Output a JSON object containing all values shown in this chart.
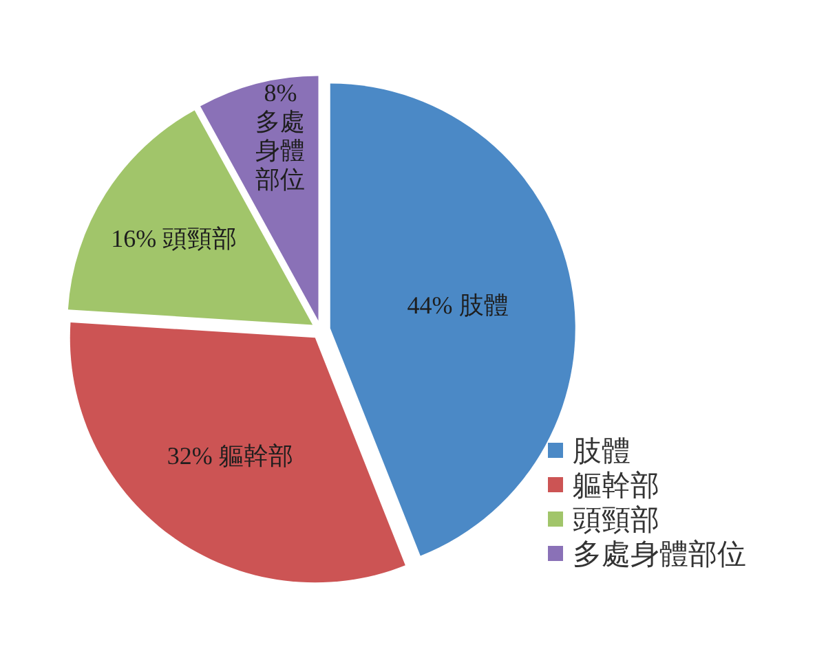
{
  "chart_data": {
    "type": "pie",
    "categories": [
      "肢體",
      "軀幹部",
      "頭頸部",
      "多處身體部位"
    ],
    "values": [
      44,
      32,
      16,
      8
    ],
    "colors": [
      "#4b89c6",
      "#cc5454",
      "#a1c56a",
      "#8a71b7"
    ],
    "value_labels": [
      "44% 肢體",
      "32% 軀幹部",
      "16% 頭頸部",
      "8% 多處身體部位"
    ],
    "legend": "bottom right"
  }
}
